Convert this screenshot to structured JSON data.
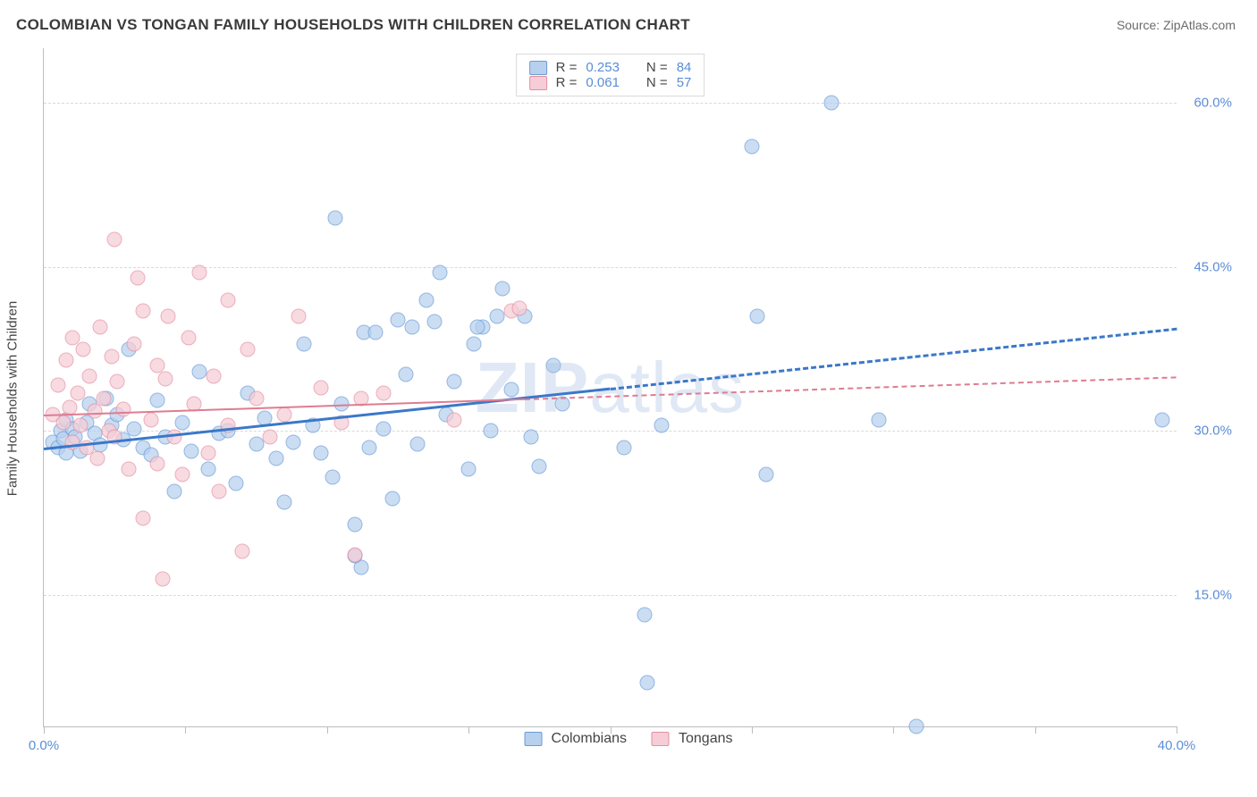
{
  "title": "COLOMBIAN VS TONGAN FAMILY HOUSEHOLDS WITH CHILDREN CORRELATION CHART",
  "source": "Source: ZipAtlas.com",
  "watermark_main": "ZIP",
  "watermark_sub": "atlas",
  "chart": {
    "type": "scatter",
    "xlim": [
      0,
      40
    ],
    "ylim": [
      3,
      65
    ],
    "x_ticks": [
      0,
      5,
      10,
      15,
      20,
      25,
      30,
      35,
      40
    ],
    "x_tick_labels": {
      "0": "0.0%",
      "40": "40.0%"
    },
    "y_grid": [
      15,
      30,
      45,
      60
    ],
    "y_tick_labels": {
      "15": "15.0%",
      "30": "30.0%",
      "45": "45.0%",
      "60": "60.0%"
    },
    "ylabel": "Family Households with Children",
    "background_color": "#ffffff",
    "grid_color": "#d9d9d9",
    "axis_color": "#bdbdbd",
    "series": [
      {
        "name": "Colombians",
        "key": "colombians",
        "point_fill": "#b7d0ee",
        "point_stroke": "#6a9bd8",
        "line_color": "#3a78c9",
        "line_width": 3,
        "R": "0.253",
        "N": "84",
        "regression": {
          "x1": 0,
          "y1": 28.5,
          "x2": 40,
          "y2": 39.5,
          "solid_until_x": 20
        },
        "points": [
          [
            0.3,
            29
          ],
          [
            0.5,
            28.5
          ],
          [
            0.6,
            30
          ],
          [
            0.7,
            29.3
          ],
          [
            0.8,
            31
          ],
          [
            0.8,
            28
          ],
          [
            1.0,
            30.2
          ],
          [
            1.1,
            29.5
          ],
          [
            1.3,
            28.2
          ],
          [
            1.5,
            30.8
          ],
          [
            1.6,
            32.5
          ],
          [
            1.8,
            29.8
          ],
          [
            2.0,
            28.7
          ],
          [
            2.2,
            33
          ],
          [
            2.4,
            30.5
          ],
          [
            2.6,
            31.5
          ],
          [
            2.8,
            29.2
          ],
          [
            3.0,
            37.5
          ],
          [
            3.2,
            30.2
          ],
          [
            3.5,
            28.5
          ],
          [
            3.8,
            27.8
          ],
          [
            4.0,
            32.8
          ],
          [
            4.3,
            29.5
          ],
          [
            4.6,
            24.5
          ],
          [
            4.9,
            30.8
          ],
          [
            5.2,
            28.2
          ],
          [
            5.5,
            35.4
          ],
          [
            5.8,
            26.5
          ],
          [
            6.2,
            29.8
          ],
          [
            6.5,
            30
          ],
          [
            6.8,
            25.2
          ],
          [
            7.2,
            33.5
          ],
          [
            7.5,
            28.8
          ],
          [
            7.8,
            31.2
          ],
          [
            8.2,
            27.5
          ],
          [
            8.5,
            23.5
          ],
          [
            8.8,
            29.0
          ],
          [
            9.2,
            38
          ],
          [
            9.5,
            30.5
          ],
          [
            9.8,
            28
          ],
          [
            10.2,
            25.8
          ],
          [
            10.5,
            32.5
          ],
          [
            11.0,
            21.5
          ],
          [
            11.3,
            39
          ],
          [
            11.5,
            28.5
          ],
          [
            10.3,
            49.5
          ],
          [
            11.2,
            17.5
          ],
          [
            11.0,
            18.6
          ],
          [
            12.0,
            30.2
          ],
          [
            12.3,
            23.8
          ],
          [
            12.8,
            35.2
          ],
          [
            13.2,
            28.8
          ],
          [
            13.5,
            42
          ],
          [
            13.8,
            40
          ],
          [
            14.2,
            31.5
          ],
          [
            14.5,
            34.5
          ],
          [
            14.0,
            44.5
          ],
          [
            15.0,
            26.5
          ],
          [
            15.2,
            38
          ],
          [
            15.5,
            39.5
          ],
          [
            15.8,
            30
          ],
          [
            16.2,
            43
          ],
          [
            16.5,
            33.8
          ],
          [
            17.0,
            40.5
          ],
          [
            17.2,
            29.5
          ],
          [
            17.5,
            26.8
          ],
          [
            18.0,
            36
          ],
          [
            18.3,
            32.5
          ],
          [
            15.3,
            39.5
          ],
          [
            20.5,
            28.5
          ],
          [
            21.2,
            13.2
          ],
          [
            21.3,
            7.0
          ],
          [
            21.8,
            30.5
          ],
          [
            25.0,
            56.0
          ],
          [
            25.2,
            40.5
          ],
          [
            25.5,
            26.0
          ],
          [
            27.8,
            60.0
          ],
          [
            29.5,
            31.0
          ],
          [
            30.8,
            3.0
          ],
          [
            39.5,
            31.0
          ],
          [
            16.0,
            40.5
          ],
          [
            13.0,
            39.5
          ],
          [
            12.5,
            40.2
          ],
          [
            11.7,
            39.0
          ]
        ]
      },
      {
        "name": "Tongans",
        "key": "tongans",
        "point_fill": "#f6cdd6",
        "point_stroke": "#e48fa2",
        "line_color": "#de7c92",
        "line_width": 2,
        "R": "0.061",
        "N": "57",
        "regression": {
          "x1": 0,
          "y1": 31.5,
          "x2": 40,
          "y2": 35.0,
          "solid_until_x": 17
        },
        "points": [
          [
            0.3,
            31.5
          ],
          [
            0.5,
            34.2
          ],
          [
            0.7,
            30.8
          ],
          [
            0.8,
            36.5
          ],
          [
            0.9,
            32.2
          ],
          [
            1.0,
            38.5
          ],
          [
            1.0,
            29.0
          ],
          [
            1.2,
            33.5
          ],
          [
            1.3,
            30.5
          ],
          [
            1.4,
            37.5
          ],
          [
            1.5,
            28.5
          ],
          [
            1.6,
            35.0
          ],
          [
            1.8,
            31.8
          ],
          [
            1.9,
            27.5
          ],
          [
            2.0,
            39.5
          ],
          [
            2.1,
            33.0
          ],
          [
            2.3,
            30.0
          ],
          [
            2.4,
            36.8
          ],
          [
            2.5,
            29.5
          ],
          [
            2.6,
            34.5
          ],
          [
            2.8,
            32.0
          ],
          [
            2.5,
            47.5
          ],
          [
            3.0,
            26.5
          ],
          [
            3.2,
            38.0
          ],
          [
            3.3,
            44.0
          ],
          [
            3.5,
            22.0
          ],
          [
            3.5,
            41.0
          ],
          [
            3.8,
            31.0
          ],
          [
            4.0,
            36.0
          ],
          [
            4.2,
            16.5
          ],
          [
            4.3,
            34.8
          ],
          [
            4.4,
            40.5
          ],
          [
            4.6,
            29.5
          ],
          [
            4.9,
            26.0
          ],
          [
            5.1,
            38.5
          ],
          [
            5.3,
            32.5
          ],
          [
            5.5,
            44.5
          ],
          [
            5.8,
            28.0
          ],
          [
            6.0,
            35.0
          ],
          [
            6.2,
            24.5
          ],
          [
            6.5,
            30.5
          ],
          [
            7.0,
            19.0
          ],
          [
            7.2,
            37.5
          ],
          [
            7.5,
            33.0
          ],
          [
            8.0,
            29.5
          ],
          [
            8.5,
            31.5
          ],
          [
            9.0,
            40.5
          ],
          [
            9.8,
            34.0
          ],
          [
            10.5,
            30.8
          ],
          [
            11.0,
            18.7
          ],
          [
            12.0,
            33.5
          ],
          [
            14.5,
            31.0
          ],
          [
            16.5,
            41.0
          ],
          [
            16.8,
            41.2
          ],
          [
            11.2,
            33.0
          ],
          [
            6.5,
            42.0
          ],
          [
            4.0,
            27.0
          ]
        ]
      }
    ]
  },
  "legend_top": [
    {
      "series": "colombians",
      "r_label": "R =",
      "n_label": "N ="
    },
    {
      "series": "tongans",
      "r_label": "R =",
      "n_label": "N ="
    }
  ],
  "legend_bottom": [
    {
      "series": "colombians"
    },
    {
      "series": "tongans"
    }
  ]
}
